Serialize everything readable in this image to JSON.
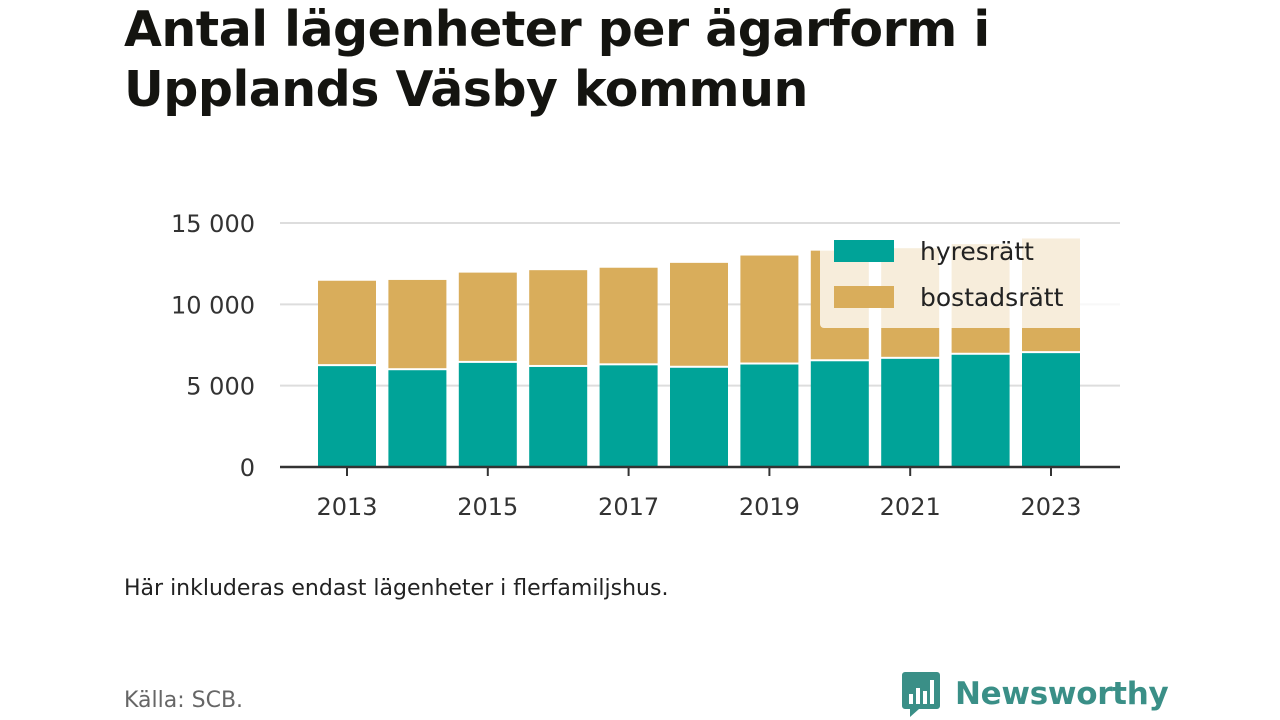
{
  "title": "Antal lägenheter per ägarform i Upplands Väsby kommun",
  "note": "Här inkluderas endast lägenheter i flerfamiljshus.",
  "source": "Källa: SCB.",
  "brand": {
    "name": "Newsworthy",
    "color": "#3a8f87",
    "icon": "chart-speech-bubble-icon"
  },
  "colors": {
    "hyresratt": "#00a398",
    "bostadsratt": "#d9ad5b",
    "grid": "#dddddd",
    "axis": "#333333"
  },
  "chart_data": {
    "type": "bar",
    "stacked": true,
    "title": "Antal lägenheter per ägarform i Upplands Väsby kommun",
    "categories": [
      "2013",
      "2014",
      "2015",
      "2016",
      "2017",
      "2018",
      "2019",
      "2020",
      "2021",
      "2022",
      "2023"
    ],
    "x_tick_labels": [
      "2013",
      "2015",
      "2017",
      "2019",
      "2021",
      "2023"
    ],
    "series": [
      {
        "name": "hyresrätt",
        "values": [
          6200,
          5950,
          6400,
          6150,
          6250,
          6100,
          6300,
          6500,
          6650,
          6900,
          7000
        ]
      },
      {
        "name": "bostadsrätt",
        "values": [
          5250,
          5550,
          5550,
          5950,
          6000,
          6450,
          6700,
          6800,
          6800,
          6800,
          7050
        ]
      }
    ],
    "ylim": [
      0,
      15000
    ],
    "y_ticks": [
      0,
      5000,
      10000,
      15000
    ],
    "y_tick_labels": [
      "0",
      "5 000",
      "10 000",
      "15 000"
    ],
    "grid": true,
    "legend": "top-right",
    "xlabel": "",
    "ylabel": ""
  }
}
